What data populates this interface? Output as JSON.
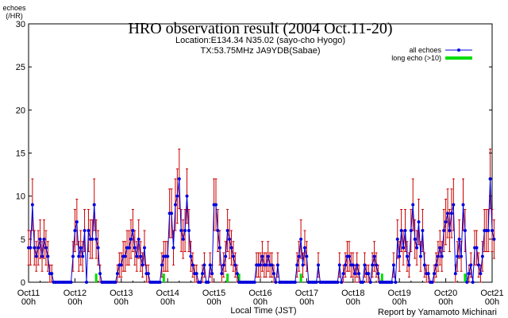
{
  "chart_data": {
    "type": "line",
    "title": "HRO observation result (2004 Oct.11-20)",
    "subtitle_lines": [
      "Location:E134.34 N35.02 (sayo-cho Hyogo)",
      "TX:53.75MHz JA9YDB(Sabae)"
    ],
    "ylabel_lines": [
      "echoes",
      "(/HR)"
    ],
    "xlabel": "Local Time (JST)",
    "credit": "Report by Yamamoto Michinari",
    "ylim": [
      0,
      30
    ],
    "yticks": [
      "0",
      "5",
      "10",
      "15",
      "20",
      "25",
      "30"
    ],
    "xlim_hours": [
      0,
      240
    ],
    "xticks": [
      {
        "day": "Oct11",
        "time": "00h"
      },
      {
        "day": "Oct12",
        "time": "00h"
      },
      {
        "day": "Oct13",
        "time": "00h"
      },
      {
        "day": "Oct14",
        "time": "00h"
      },
      {
        "day": "Oct15",
        "time": "00h"
      },
      {
        "day": "Oct16",
        "time": "00h"
      },
      {
        "day": "Oct17",
        "time": "00h"
      },
      {
        "day": "Oct18",
        "time": "00h"
      },
      {
        "day": "Oct19",
        "time": "00h"
      },
      {
        "day": "Oct20",
        "time": "00h"
      },
      {
        "day": "Oct21",
        "time": "00h"
      }
    ],
    "legend_position": "top-right",
    "colors": {
      "all": "#0000dd",
      "error": "#cc0000",
      "long": "#00dd00"
    },
    "series": [
      {
        "name": "all echoes",
        "type": "line",
        "values": [
          4,
          4,
          9,
          4,
          3,
          4,
          5,
          3,
          5,
          4,
          3,
          1,
          1,
          0,
          0,
          0,
          0,
          0,
          0,
          0,
          0,
          0,
          0,
          3,
          6,
          7,
          3,
          4,
          3,
          6,
          0,
          6,
          5,
          5,
          9,
          5,
          4,
          1,
          0,
          0,
          0,
          0,
          0,
          0,
          0,
          0,
          1,
          2,
          2,
          3,
          3,
          4,
          4,
          5,
          6,
          4,
          3,
          5,
          3,
          2,
          4,
          1,
          1,
          0,
          0,
          0,
          0,
          0,
          0,
          2,
          3,
          3,
          3,
          8,
          8,
          4,
          9,
          10,
          12,
          6,
          5,
          6,
          10,
          6,
          3,
          2,
          1,
          1,
          0,
          0,
          1,
          2,
          0,
          0,
          2,
          1,
          9,
          9,
          6,
          4,
          1,
          2,
          3,
          6,
          5,
          4,
          3,
          2,
          1,
          0,
          0,
          0,
          0,
          0,
          0,
          0,
          0,
          0,
          2,
          2,
          2,
          3,
          2,
          2,
          3,
          2,
          2,
          1,
          0,
          2,
          0,
          0,
          0,
          0,
          0,
          0,
          0,
          0,
          0,
          2,
          3,
          5,
          2,
          4,
          3,
          0,
          0,
          0,
          0,
          0,
          2,
          0,
          0,
          0,
          0,
          0,
          0,
          0,
          0,
          0,
          0,
          2,
          0,
          1,
          2,
          3,
          3,
          2,
          2,
          1,
          2,
          1,
          0,
          0,
          2,
          1,
          1,
          0,
          2,
          3,
          2,
          1,
          0,
          0,
          0,
          0,
          0,
          0,
          0,
          2,
          0,
          5,
          3,
          6,
          4,
          6,
          3,
          2,
          6,
          9,
          5,
          4,
          7,
          3,
          6,
          2,
          1,
          1,
          0,
          0,
          1,
          2,
          3,
          4,
          3,
          6,
          7,
          8,
          6,
          8,
          9,
          1,
          3,
          5,
          3,
          9,
          6,
          0,
          1,
          2,
          0,
          4,
          4,
          2,
          1,
          3,
          6,
          6,
          6,
          12,
          6,
          5
        ]
      },
      {
        "name": "long echo (>10)",
        "type": "bar",
        "values": [
          0,
          0,
          0,
          0,
          0,
          0,
          0,
          0,
          0,
          0,
          0,
          0,
          0,
          0,
          0,
          0,
          0,
          0,
          0,
          0,
          0,
          0,
          0,
          0,
          0,
          0,
          0,
          0,
          0,
          0,
          0,
          0,
          0,
          0,
          0,
          1,
          0,
          0,
          0,
          0,
          0,
          0,
          0,
          0,
          0,
          0,
          0,
          0,
          0,
          0,
          0,
          0,
          0,
          0,
          0,
          0,
          0,
          0,
          0,
          0,
          0,
          0,
          0,
          0,
          0,
          0,
          0,
          0,
          0,
          0,
          1,
          0,
          0,
          0,
          0,
          0,
          0,
          0,
          0,
          0,
          0,
          0,
          0,
          0,
          0,
          0,
          0,
          0,
          0,
          0,
          0,
          0,
          0,
          0,
          0,
          0,
          0,
          0,
          0,
          0,
          0,
          0,
          0,
          1,
          0,
          0,
          0,
          0,
          0,
          1,
          0,
          0,
          0,
          0,
          0,
          0,
          0,
          0,
          0,
          0,
          0,
          0,
          0,
          0,
          0,
          0,
          0,
          0,
          0,
          0,
          0,
          0,
          0,
          0,
          0,
          0,
          0,
          0,
          0,
          0,
          0,
          1,
          0,
          0,
          0,
          0,
          0,
          0,
          0,
          0,
          0,
          0,
          0,
          0,
          0,
          0,
          0,
          0,
          0,
          0,
          0,
          0,
          0,
          0,
          0,
          0,
          0,
          0,
          0,
          0,
          0,
          0,
          0,
          0,
          0,
          0,
          0,
          0,
          0,
          0,
          0,
          0,
          0,
          1,
          0,
          0,
          0,
          0,
          0,
          0,
          0,
          0,
          0,
          0,
          0,
          0,
          0,
          0,
          0,
          0,
          0,
          0,
          0,
          0,
          0,
          0,
          0,
          0,
          0,
          0,
          0,
          0,
          0,
          0,
          0,
          0,
          0,
          0,
          0,
          0,
          0,
          0,
          0,
          0,
          0,
          0,
          1,
          0,
          0,
          0,
          0,
          0,
          0,
          0,
          0,
          0,
          0,
          0,
          0,
          0,
          0,
          0
        ]
      }
    ]
  }
}
